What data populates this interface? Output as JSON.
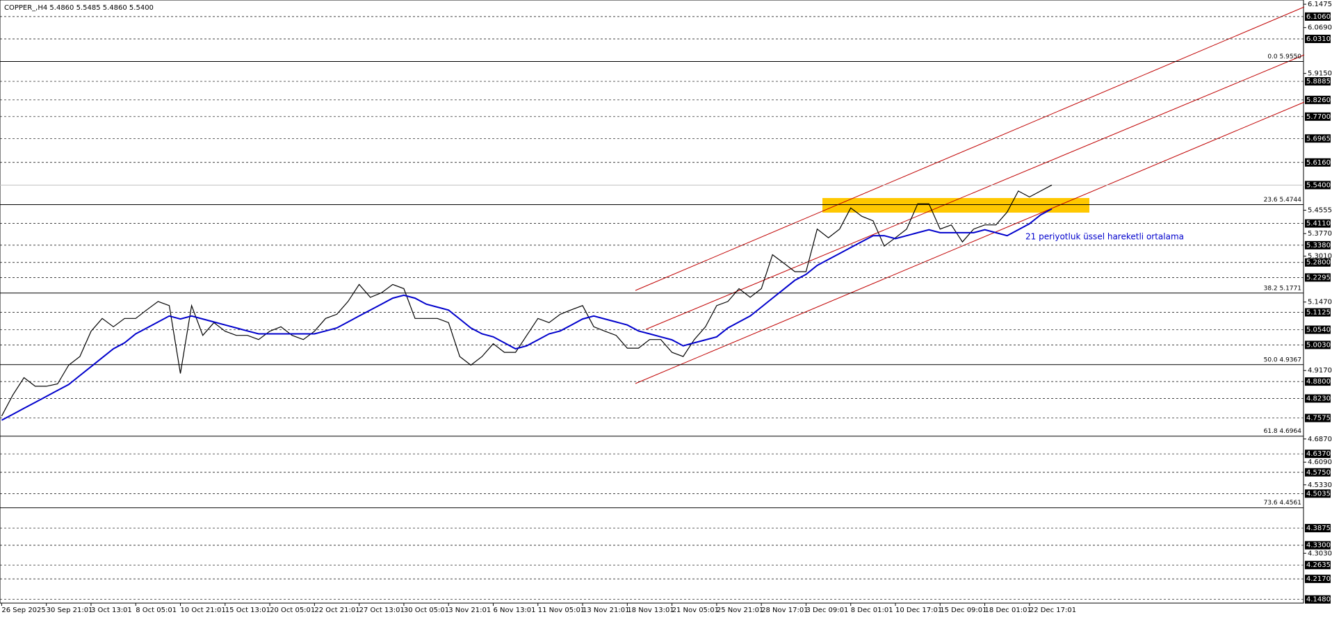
{
  "chart_data": {
    "type": "line",
    "title": "COPPER_,H4  5.4860 5.5485 5.4860 5.5400",
    "annotation": "21 periyotluk üssel hareketli ortalama",
    "ylim": [
      4.1356,
      6.1617
    ],
    "grid": true,
    "categories": [
      "26 Sep 2025",
      null,
      null,
      null,
      "30 Sep 21:01",
      null,
      null,
      null,
      "3 Oct 13:01",
      null,
      null,
      null,
      "8 Oct 05:01",
      null,
      null,
      null,
      "10 Oct 21:01",
      null,
      null,
      null,
      "15 Oct 13:01",
      null,
      null,
      null,
      "20 Oct 05:01",
      null,
      null,
      null,
      "22 Oct 21:01",
      null,
      null,
      null,
      "27 Oct 13:01",
      null,
      null,
      null,
      "30 Oct 05:01",
      null,
      null,
      null,
      "3 Nov 21:01",
      null,
      null,
      null,
      "6 Nov 13:01",
      null,
      null,
      null,
      "11 Nov 05:01",
      null,
      null,
      null,
      "13 Nov 21:01",
      null,
      null,
      null,
      "18 Nov 13:01",
      null,
      null,
      null,
      "21 Nov 05:01",
      null,
      null,
      null,
      "25 Nov 21:01",
      null,
      null,
      null,
      "28 Nov 17:01",
      null,
      null,
      null,
      "3 Dec 09:01",
      null,
      null,
      null,
      "8 Dec 01:01",
      null,
      null,
      null,
      "10 Dec 17:01",
      null,
      null,
      null,
      "15 Dec 09:01",
      null,
      null,
      null,
      "18 Dec 01:01",
      null,
      null,
      null,
      "22 Dec 17:01",
      null,
      null
    ],
    "series": [
      {
        "name": "COPPER_ H4",
        "color": "#000000",
        "values": [
          4.764,
          4.835,
          4.893,
          4.864,
          4.864,
          4.872,
          4.935,
          4.964,
          5.049,
          5.092,
          5.064,
          5.092,
          5.092,
          5.121,
          5.149,
          5.135,
          4.907,
          5.135,
          5.035,
          5.078,
          5.049,
          5.035,
          5.035,
          5.021,
          5.049,
          5.064,
          5.035,
          5.021,
          5.049,
          5.092,
          5.106,
          5.149,
          5.206,
          5.163,
          5.178,
          5.206,
          5.192,
          5.092,
          5.092,
          5.092,
          5.078,
          4.964,
          4.935,
          4.964,
          5.007,
          4.978,
          4.978,
          5.035,
          5.092,
          5.078,
          5.106,
          5.121,
          5.135,
          5.064,
          5.049,
          5.035,
          4.992,
          4.992,
          5.021,
          5.021,
          4.978,
          4.964,
          5.021,
          5.064,
          5.135,
          5.149,
          5.192,
          5.163,
          5.192,
          5.306,
          5.278,
          5.249,
          5.249,
          5.392,
          5.363,
          5.392,
          5.463,
          5.435,
          5.42,
          5.335,
          5.363,
          5.392,
          5.477,
          5.477,
          5.392,
          5.406,
          5.349,
          5.392,
          5.406,
          5.406,
          5.449,
          5.52,
          5.5,
          5.52,
          5.54
        ]
      },
      {
        "name": "EMA 21",
        "color": "#0000cc",
        "values": [
          4.75,
          4.77,
          4.79,
          4.81,
          4.83,
          4.85,
          4.87,
          4.9,
          4.93,
          4.96,
          4.99,
          5.01,
          5.04,
          5.06,
          5.08,
          5.1,
          5.09,
          5.1,
          5.09,
          5.08,
          5.07,
          5.06,
          5.05,
          5.04,
          5.04,
          5.04,
          5.04,
          5.04,
          5.04,
          5.05,
          5.06,
          5.08,
          5.1,
          5.12,
          5.14,
          5.16,
          5.17,
          5.16,
          5.14,
          5.13,
          5.12,
          5.09,
          5.06,
          5.04,
          5.03,
          5.01,
          4.99,
          5.0,
          5.02,
          5.04,
          5.05,
          5.07,
          5.09,
          5.1,
          5.09,
          5.08,
          5.07,
          5.05,
          5.04,
          5.03,
          5.02,
          5.0,
          5.01,
          5.02,
          5.03,
          5.06,
          5.08,
          5.1,
          5.13,
          5.16,
          5.19,
          5.22,
          5.24,
          5.27,
          5.29,
          5.31,
          5.33,
          5.35,
          5.37,
          5.37,
          5.36,
          5.37,
          5.38,
          5.39,
          5.38,
          5.38,
          5.38,
          5.38,
          5.39,
          5.38,
          5.37,
          5.39,
          5.41,
          5.44,
          5.46
        ]
      }
    ],
    "current_price": {
      "value": 5.54,
      "label": "5.5400"
    },
    "yticks": [
      6.1475,
      {
        "value": 6.069,
        "label": "6.0690"
      },
      {
        "value": 5.915,
        "label": "5.9150"
      },
      5.4555,
      {
        "value": 5.377,
        "label": "5.3770"
      },
      {
        "value": 5.301,
        "label": "5.3010"
      },
      {
        "value": 5.147,
        "label": "5.1470"
      },
      {
        "value": 4.917,
        "label": "4.9170"
      },
      {
        "value": 4.687,
        "label": "4.6870"
      },
      {
        "value": 4.609,
        "label": "4.6090"
      },
      {
        "value": 4.533,
        "label": "4.5330"
      },
      {
        "value": 4.303,
        "label": "4.3030"
      }
    ],
    "levels": [
      {
        "value": 6.106,
        "label": "6.1060"
      },
      {
        "value": 6.031,
        "label": "6.0310"
      },
      5.8885,
      {
        "value": 5.826,
        "label": "5.8260"
      },
      {
        "value": 5.77,
        "label": "5.7700"
      },
      5.6965,
      {
        "value": 5.616,
        "label": "5.6160"
      },
      {
        "value": 5.411,
        "label": "5.4110"
      },
      {
        "value": 5.338,
        "label": "5.3380"
      },
      {
        "value": 5.28,
        "label": "5.2800"
      },
      5.2295,
      5.1125,
      {
        "value": 5.054,
        "label": "5.0540"
      },
      {
        "value": 5.003,
        "label": "5.0030"
      },
      {
        "value": 4.88,
        "label": "4.8800"
      },
      {
        "value": 4.823,
        "label": "4.8230"
      },
      4.7575,
      {
        "value": 4.637,
        "label": "4.6370"
      },
      {
        "value": 4.575,
        "label": "4.5750"
      },
      4.5035,
      4.3875,
      {
        "value": 4.33,
        "label": "4.3300"
      },
      4.2635,
      {
        "value": 4.217,
        "label": "4.2170"
      },
      {
        "value": 4.148,
        "label": "4.1480"
      }
    ],
    "fib_levels": [
      {
        "value": 5.955,
        "label": "0.0 5.9550"
      },
      {
        "value": 5.4744,
        "label": "23.6 5.4744"
      },
      {
        "value": 5.1771,
        "label": "38.2 5.1771"
      },
      {
        "value": 4.9367,
        "label": "50.0 4.9367"
      },
      {
        "value": 4.6964,
        "label": "61.8 4.6964"
      },
      {
        "value": 4.4561,
        "label": "73.6 4.4561"
      }
    ]
  }
}
